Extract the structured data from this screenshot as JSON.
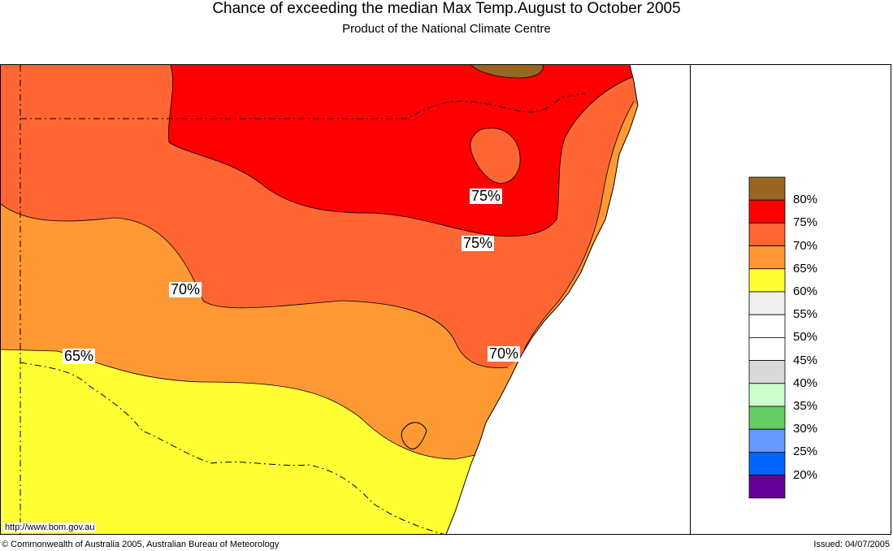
{
  "header": {
    "title": "Chance of exceeding the median Max Temp.August to October 2005",
    "subtitle": "Product of the National Climate Centre"
  },
  "map": {
    "contour_labels": [
      "75%",
      "75%",
      "70%",
      "70%",
      "65%"
    ],
    "region_colors": {
      "c80": "#996622",
      "c75": "#ff0000",
      "c70": "#ff6633",
      "c65": "#ff9933",
      "c60": "#ffff33"
    }
  },
  "legend": {
    "items": [
      {
        "label": "80%",
        "color": "#996622"
      },
      {
        "label": "75%",
        "color": "#ff0000"
      },
      {
        "label": "70%",
        "color": "#ff6633"
      },
      {
        "label": "65%",
        "color": "#ff9933"
      },
      {
        "label": "60%",
        "color": "#ffff33"
      },
      {
        "label": "55%",
        "color": "#eeeeee"
      },
      {
        "label": "50%",
        "color": "#ffffff"
      },
      {
        "label": "45%",
        "color": "#ffffff"
      },
      {
        "label": "40%",
        "color": "#d9d9d9"
      },
      {
        "label": "35%",
        "color": "#ccffcc"
      },
      {
        "label": "30%",
        "color": "#66cc66"
      },
      {
        "label": "25%",
        "color": "#6699ff"
      },
      {
        "label": "20%",
        "color": "#0066ff"
      }
    ],
    "bottom_color": "#660099"
  },
  "footer": {
    "url": "http://www.bom.gov.au",
    "copyright": "© Commonwealth of Australia 2005, Australian Bureau of Meteorology",
    "issued": "Issued: 04/07/2005"
  }
}
